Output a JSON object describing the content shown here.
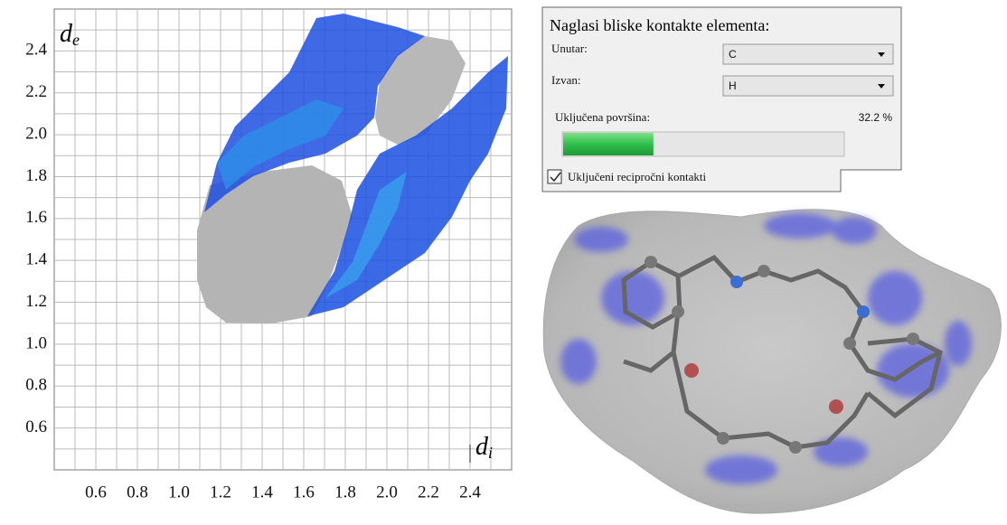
{
  "fingerprint_plot": {
    "x_label": {
      "base": "d",
      "sub": "i"
    },
    "y_label": {
      "base": "d",
      "sub": "e"
    },
    "xlim": [
      0.4,
      2.6
    ],
    "ylim": [
      0.4,
      2.6
    ],
    "xticks": [
      0.6,
      0.8,
      {
        "value": 1,
        "label": "1.0"
      },
      1.2,
      1.4,
      1.6,
      1.8,
      {
        "value": 2,
        "label": "2.0"
      },
      2.2,
      2.4
    ],
    "yticks": [
      0.6,
      0.8,
      {
        "value": 1,
        "label": "1.0"
      },
      1.2,
      1.4,
      1.6,
      1.8,
      {
        "value": 2,
        "label": "2.0"
      },
      2.2,
      2.4
    ],
    "minor_ticks": [
      0.5,
      0.7,
      0.9,
      1.1,
      1.3,
      1.5,
      1.7,
      1.9,
      2.1,
      2.3,
      2.5
    ]
  },
  "panel": {
    "title": "Naglasi bliske kontakte elementa:",
    "inside_label": "Unutar:",
    "inside_value": "C",
    "outside_label": "Izvan:",
    "outside_value": "H",
    "surface_label": "Uključena površina:",
    "surface": {
      "value": 32.2,
      "label": "32.2 %"
    },
    "reciprocal_label": "Uključeni recipročni kontakti"
  }
}
